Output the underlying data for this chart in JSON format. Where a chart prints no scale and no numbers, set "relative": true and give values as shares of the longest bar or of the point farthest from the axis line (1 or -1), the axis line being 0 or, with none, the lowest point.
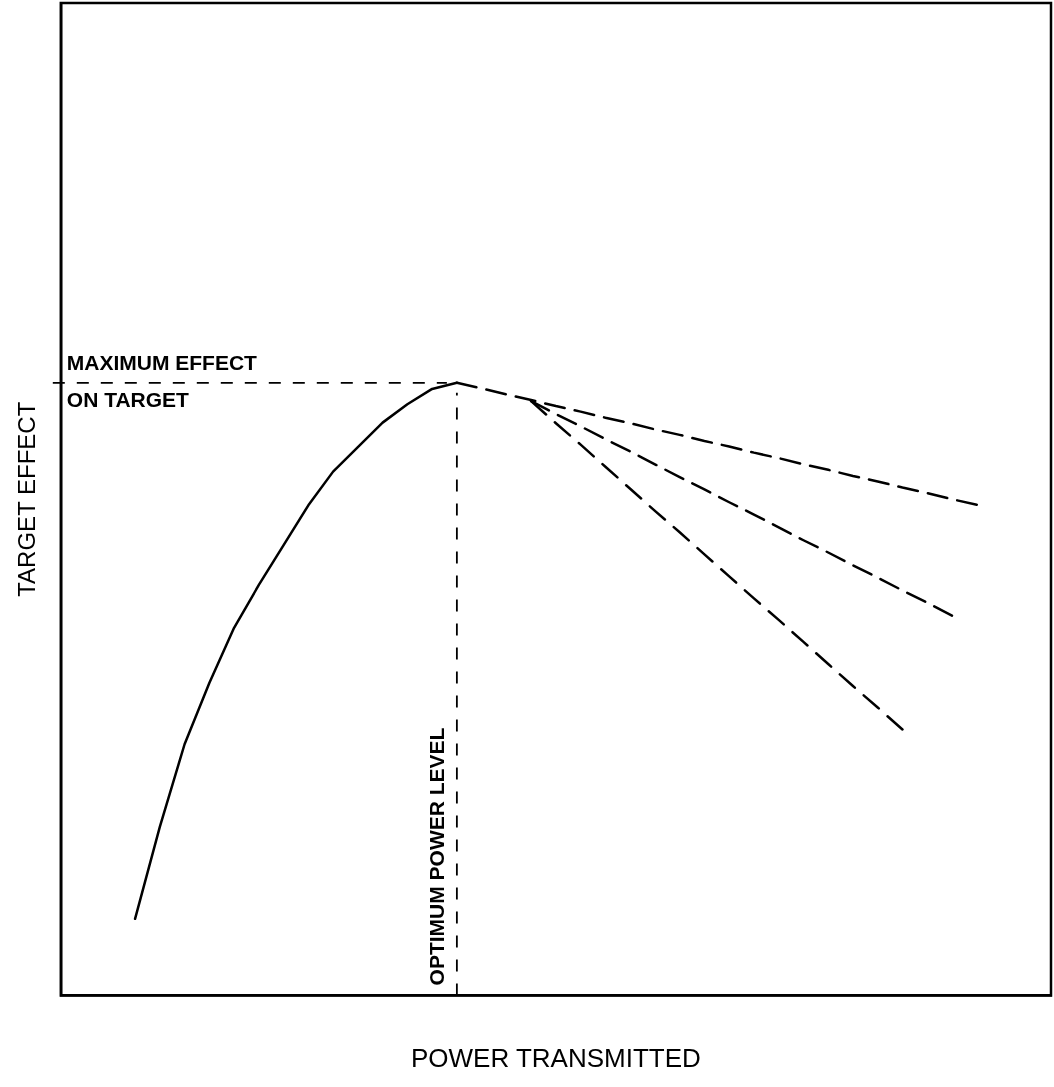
{
  "chart_data": {
    "type": "line",
    "relative": true,
    "xlabel": "POWER TRANSMITTED",
    "ylabel": "TARGET EFFECT",
    "legend": false,
    "marker": "none",
    "categories": [
      null,
      null,
      null,
      null,
      null,
      null,
      null,
      null,
      null,
      null,
      null,
      null,
      null,
      null,
      null,
      null,
      null,
      null,
      null,
      null,
      null,
      null,
      null,
      null,
      null,
      null,
      null,
      null,
      null,
      null,
      null,
      null,
      null,
      null,
      null,
      null,
      null,
      null,
      null,
      null,
      null
    ],
    "series": [
      {
        "color": "#000000",
        "line_style": "solid",
        "values": [
          null,
          null,
          null,
          0.125,
          0.275,
          0.41,
          0.51,
          0.6,
          0.67,
          0.735,
          0.8,
          0.855,
          0.895,
          0.935,
          0.965,
          0.99,
          1.0,
          null,
          null,
          null,
          null,
          null,
          null,
          null,
          null,
          null,
          null,
          null,
          null,
          null,
          null,
          null,
          null,
          null,
          null,
          null,
          null,
          null,
          null,
          null,
          null
        ]
      },
      {
        "color": "#000000",
        "line_style": "dashed",
        "values": [
          null,
          null,
          null,
          null,
          null,
          null,
          null,
          null,
          null,
          null,
          null,
          null,
          null,
          null,
          null,
          null,
          1.0,
          0.991,
          0.981,
          0.972,
          0.962,
          0.953,
          0.943,
          0.934,
          0.924,
          0.915,
          0.905,
          0.896,
          0.886,
          0.877,
          0.867,
          0.858,
          0.848,
          0.839,
          0.829,
          0.82,
          0.81,
          0.801,
          null,
          null,
          null
        ]
      },
      {
        "color": "#000000",
        "line_style": "dashed",
        "values": [
          null,
          null,
          null,
          null,
          null,
          null,
          null,
          null,
          null,
          null,
          null,
          null,
          null,
          null,
          null,
          null,
          null,
          null,
          null,
          0.97,
          0.949,
          0.929,
          0.908,
          0.888,
          0.867,
          0.846,
          0.826,
          0.805,
          0.785,
          0.764,
          0.743,
          0.723,
          0.702,
          0.682,
          0.661,
          0.641,
          0.62,
          null,
          null,
          null,
          null
        ]
      },
      {
        "color": "#000000",
        "line_style": "dashed",
        "values": [
          null,
          null,
          null,
          null,
          null,
          null,
          null,
          null,
          null,
          null,
          null,
          null,
          null,
          null,
          null,
          null,
          null,
          null,
          null,
          0.97,
          0.934,
          0.899,
          0.863,
          0.827,
          0.791,
          0.756,
          0.72,
          0.684,
          0.648,
          0.613,
          0.577,
          0.541,
          0.505,
          0.47,
          0.434,
          null,
          null,
          null,
          null,
          null,
          null
        ]
      }
    ],
    "ref_lines": [
      {
        "axis": "y",
        "value": 1.0,
        "label": "MAXIMUM EFFECT ON TARGET",
        "line_style": "dashed"
      }
    ],
    "annotations": [
      "OPTIMUM POWER LEVEL"
    ]
  }
}
